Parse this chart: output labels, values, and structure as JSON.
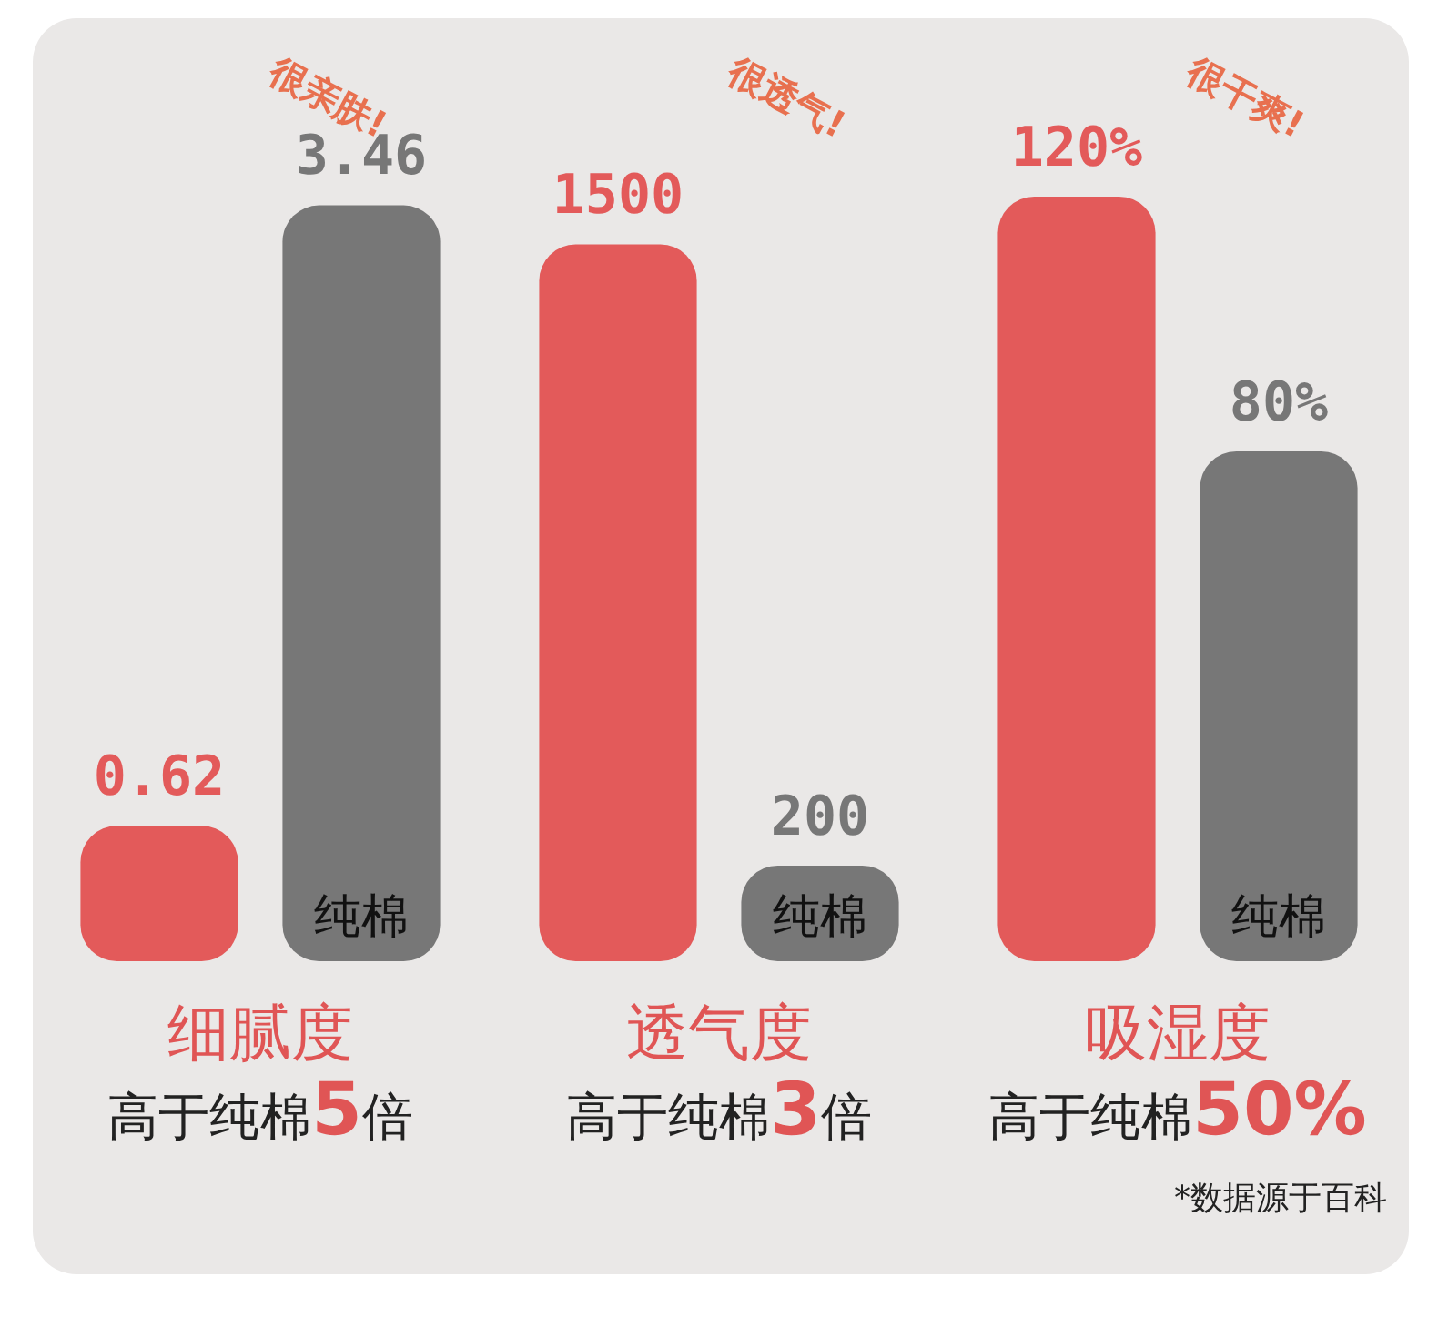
{
  "chart_data": [
    {
      "type": "bar",
      "title": "细腻度",
      "subtitle": "高于纯棉5倍",
      "categories": [
        null,
        "纯棉"
      ],
      "tick_labels": false,
      "colors": [
        "#e35a5a",
        "#777777"
      ],
      "values": [
        0.62,
        3.46
      ],
      "value_labels": [
        "0.62",
        "3.46"
      ],
      "annotations": [
        "很亲肤!"
      ]
    },
    {
      "type": "bar",
      "title": "透气度",
      "subtitle": "高于纯棉3倍",
      "categories": [
        null,
        "纯棉"
      ],
      "tick_labels": false,
      "colors": [
        "#e35a5a",
        "#777777"
      ],
      "values": [
        1500,
        200
      ],
      "value_labels": [
        "1500",
        "200"
      ],
      "annotations": [
        "很透气!"
      ]
    },
    {
      "type": "bar",
      "title": "吸湿度",
      "subtitle": "高于纯棉50%",
      "categories": [
        null,
        "纯棉"
      ],
      "tick_labels": false,
      "colors": [
        "#e35a5a",
        "#777777"
      ],
      "values": [
        120,
        80
      ],
      "value_labels": [
        "120%",
        "80%"
      ],
      "annotations": [
        "很干爽!",
        "*数据源于百科"
      ]
    }
  ]
}
